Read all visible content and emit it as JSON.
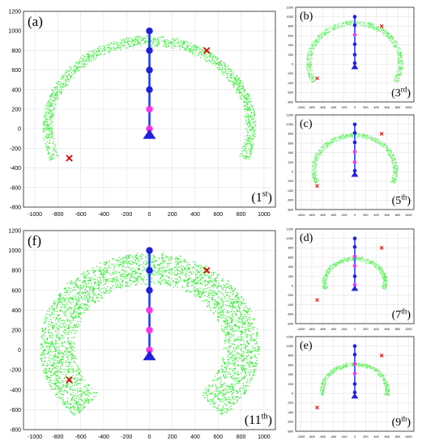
{
  "figure": {
    "description": "",
    "colors": {
      "scatter": "#33ee33",
      "link": "#1f3cff",
      "joint_blue": "#1f22dd",
      "joint_magenta": "#ff33ee",
      "target": "#dd0000",
      "base": "#1f22dd",
      "grid": "#e2e2e2"
    }
  },
  "chart_data": [
    {
      "type": "scatter",
      "panel": "(a)",
      "iteration": "1",
      "iteration_suffix": "st",
      "xlim": [
        -1100,
        1100
      ],
      "ylim": [
        -800,
        1200
      ],
      "xticks": [
        -1000,
        -800,
        -600,
        -400,
        -200,
        0,
        200,
        400,
        600,
        800,
        1000
      ],
      "yticks": [
        -800,
        -600,
        -400,
        -200,
        0,
        200,
        400,
        600,
        800,
        1000,
        1200
      ],
      "grid": true,
      "cloud": {
        "rin": 840,
        "rout": 930,
        "angle_min_deg": -21,
        "angle_max_deg": 201,
        "inner_cy": 70,
        "count": 1400
      },
      "joints": [
        {
          "y": 1000,
          "c": "blue"
        },
        {
          "y": 800,
          "c": "blue"
        },
        {
          "y": 600,
          "c": "blue"
        },
        {
          "y": 400,
          "c": "blue"
        },
        {
          "y": 200,
          "c": "magenta"
        },
        {
          "y": 0,
          "c": "magenta"
        }
      ],
      "base_y": -70,
      "targets": [
        {
          "x": 500,
          "y": 800
        },
        {
          "x": -700,
          "y": -300
        }
      ]
    },
    {
      "type": "scatter",
      "panel": "(b)",
      "iteration": "3",
      "iteration_suffix": "rd",
      "xlim": [
        -1100,
        1100
      ],
      "ylim": [
        -800,
        1200
      ],
      "xticks": [
        -1000,
        -800,
        -600,
        -400,
        -200,
        0,
        200,
        400,
        600,
        800,
        1000
      ],
      "yticks": [
        -800,
        -600,
        -400,
        -200,
        0,
        200,
        400,
        600,
        800,
        1000,
        1200
      ],
      "grid": true,
      "cloud": {
        "rin": 800,
        "rout": 900,
        "angle_min_deg": -28,
        "angle_max_deg": 208,
        "inner_cy": 100,
        "count": 900
      },
      "joints": [
        {
          "y": 1000,
          "c": "blue"
        },
        {
          "y": 820,
          "c": "blue"
        },
        {
          "y": 620,
          "c": "magenta"
        },
        {
          "y": 420,
          "c": "blue"
        },
        {
          "y": 200,
          "c": "blue"
        },
        {
          "y": 20,
          "c": "blue"
        }
      ],
      "base_y": -70,
      "targets": [
        {
          "x": 500,
          "y": 800
        },
        {
          "x": -700,
          "y": -300
        }
      ]
    },
    {
      "type": "scatter",
      "panel": "(c)",
      "iteration": "5",
      "iteration_suffix": "th",
      "xlim": [
        -1100,
        1100
      ],
      "ylim": [
        -800,
        1200
      ],
      "xticks": [
        -1000,
        -800,
        -600,
        -400,
        -200,
        0,
        200,
        400,
        600,
        800,
        1000
      ],
      "yticks": [
        -800,
        -600,
        -400,
        -200,
        0,
        200,
        400,
        600,
        800,
        1000,
        1200
      ],
      "grid": true,
      "cloud": {
        "rin": 710,
        "rout": 800,
        "angle_min_deg": -22,
        "angle_max_deg": 202,
        "inner_cy": 200,
        "count": 800
      },
      "joints": [
        {
          "y": 1000,
          "c": "blue"
        },
        {
          "y": 820,
          "c": "blue"
        },
        {
          "y": 620,
          "c": "blue"
        },
        {
          "y": 420,
          "c": "magenta"
        },
        {
          "y": 200,
          "c": "magenta"
        },
        {
          "y": 20,
          "c": "blue"
        }
      ],
      "base_y": -70,
      "targets": [
        {
          "x": 500,
          "y": 800
        },
        {
          "x": -700,
          "y": -300
        }
      ]
    },
    {
      "type": "scatter",
      "panel": "(d)",
      "iteration": "7",
      "iteration_suffix": "th",
      "xlim": [
        -1100,
        1100
      ],
      "ylim": [
        -800,
        1200
      ],
      "xticks": [
        -1000,
        -800,
        -600,
        -400,
        -200,
        0,
        200,
        400,
        600,
        800,
        1000
      ],
      "yticks": [
        -800,
        -600,
        -400,
        -200,
        0,
        200,
        400,
        600,
        800,
        1000,
        1200
      ],
      "grid": true,
      "cloud": {
        "rin": 520,
        "rout": 600,
        "angle_min_deg": -16,
        "angle_max_deg": 196,
        "inner_cy": 400,
        "count": 600
      },
      "joints": [
        {
          "y": 1000,
          "c": "blue"
        },
        {
          "y": 820,
          "c": "blue"
        },
        {
          "y": 620,
          "c": "magenta"
        },
        {
          "y": 420,
          "c": "magenta"
        },
        {
          "y": 200,
          "c": "blue"
        },
        {
          "y": 20,
          "c": "magenta"
        }
      ],
      "base_y": -70,
      "targets": [
        {
          "x": 500,
          "y": 800
        },
        {
          "x": -700,
          "y": -300
        }
      ]
    },
    {
      "type": "scatter",
      "panel": "(e)",
      "iteration": "9",
      "iteration_suffix": "th",
      "xlim": [
        -1100,
        1100
      ],
      "ylim": [
        -800,
        1200
      ],
      "xticks": [
        -1000,
        -800,
        -600,
        -400,
        -200,
        0,
        200,
        400,
        600,
        800,
        1000
      ],
      "yticks": [
        -800,
        -600,
        -400,
        -200,
        0,
        200,
        400,
        600,
        800,
        1000,
        1200
      ],
      "grid": true,
      "cloud": {
        "rin": 560,
        "rout": 640,
        "angle_min_deg": -12,
        "angle_max_deg": 192,
        "inner_cy": 380,
        "count": 600
      },
      "joints": [
        {
          "y": 1000,
          "c": "blue"
        },
        {
          "y": 820,
          "c": "blue"
        },
        {
          "y": 620,
          "c": "magenta"
        },
        {
          "y": 420,
          "c": "magenta"
        },
        {
          "y": 200,
          "c": "blue"
        },
        {
          "y": 20,
          "c": "blue"
        }
      ],
      "base_y": -70,
      "targets": [
        {
          "x": 500,
          "y": 800
        },
        {
          "x": -700,
          "y": -300
        }
      ]
    },
    {
      "type": "scatter",
      "panel": "(f)",
      "iteration": "11",
      "iteration_suffix": "th",
      "xlim": [
        -1100,
        1100
      ],
      "ylim": [
        -800,
        1200
      ],
      "xticks": [
        -1000,
        -800,
        -600,
        -400,
        -200,
        0,
        200,
        400,
        600,
        800,
        1000
      ],
      "yticks": [
        -800,
        -600,
        -400,
        -200,
        0,
        200,
        400,
        600,
        800,
        1000,
        1200
      ],
      "grid": true,
      "cloud": {
        "rin": 650,
        "rout": 960,
        "angle_min_deg": -48,
        "angle_max_deg": 228,
        "inner_cy": 180,
        "count": 3200
      },
      "joints": [
        {
          "y": 1000,
          "c": "blue"
        },
        {
          "y": 800,
          "c": "blue"
        },
        {
          "y": 600,
          "c": "blue"
        },
        {
          "y": 400,
          "c": "magenta"
        },
        {
          "y": 200,
          "c": "magenta"
        },
        {
          "y": 0,
          "c": "magenta"
        }
      ],
      "base_y": -70,
      "targets": [
        {
          "x": 500,
          "y": 800
        },
        {
          "x": -700,
          "y": -300
        }
      ]
    }
  ]
}
